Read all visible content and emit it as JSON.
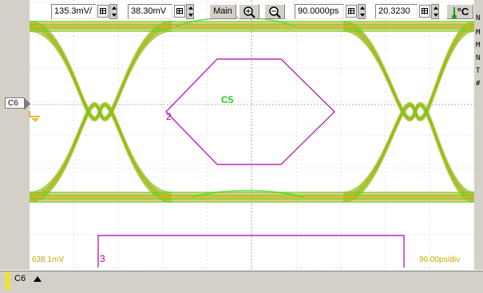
{
  "scope": {
    "channel_marker": "C6",
    "bottom_left_readout": "638.1mV",
    "bottom_right_readout": "90.00ps/div",
    "mask_label_main": "C5",
    "mask_label_2": "2",
    "mask_label_3": "3",
    "right_panel_chars": [
      "N",
      "M",
      "M",
      "N",
      "T",
      "#"
    ],
    "colors": {
      "trace_orange": "#f0a020",
      "trace_green": "#44dd22",
      "mask_purple": "#b000b0",
      "grid": "#c8c8c8",
      "readout_yellow": "#c8a800"
    }
  },
  "toolbar": {
    "channel": "C6",
    "vdiv_value": "135.3mV/",
    "offset_value": "38.30mV",
    "timebase_mode": "Main",
    "time_position": "90.0000ps",
    "zoom_factor": "20.3230",
    "temp_unit": "°C",
    "icons": [
      "chevron-up-icon",
      "grid-icon",
      "zoom-in-icon",
      "zoom-out-icon",
      "thermometer-icon"
    ]
  }
}
